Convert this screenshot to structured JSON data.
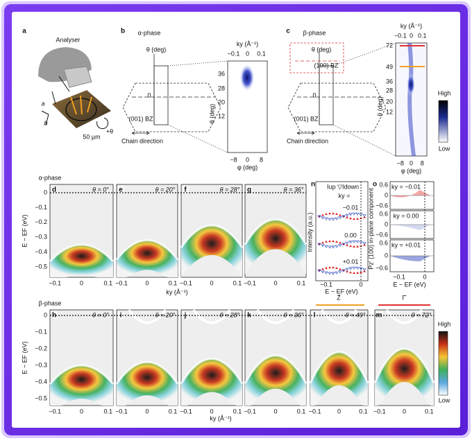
{
  "panel_a": {
    "label": "a",
    "analyser": "Analyser",
    "scale": "50 µm",
    "axis_a": "a",
    "axis_b": "b",
    "rotation": "+θ"
  },
  "panel_b": {
    "label": "b",
    "phase": "α-phase",
    "theta_axis": "θ (deg)",
    "zero": "0",
    "bz": "(001) BZ",
    "chain": "Chain direction",
    "map": {
      "top_axis": "ky (Å⁻¹)",
      "top_ticks": [
        "−0.1",
        "0",
        "0.1"
      ],
      "y_axis": "θ (deg)",
      "y_ticks": [
        "36",
        "28",
        "20",
        "12"
      ],
      "x_axis": "φ (deg)",
      "x_ticks": [
        "−8",
        "0",
        "8"
      ]
    }
  },
  "panel_c": {
    "label": "c",
    "phase": "β-phase",
    "theta_axis": "θ (deg)",
    "zero": "0",
    "bz": "(001) BZ",
    "bz_100": "(100) BZ",
    "chain": "Chain direction",
    "map": {
      "top_axis": "ky (Å⁻¹)",
      "top_ticks": [
        "−0.1",
        "0",
        "0.1"
      ],
      "y_axis": "θ (deg)",
      "y_ticks": [
        "72",
        "49",
        "36",
        "28",
        "20",
        "12"
      ],
      "x_axis": "φ (deg)",
      "x_ticks": [
        "−8",
        "0",
        "8"
      ]
    },
    "colorbar": {
      "high": "High",
      "low": "Low"
    }
  },
  "alpha_row": {
    "title": "α-phase",
    "y_axis": "E − EF (eV)",
    "y_ticks": [
      "0",
      "−0.1",
      "−0.2",
      "−0.3",
      "−0.4",
      "−0.5"
    ],
    "x_axis": "ky (Å⁻¹)",
    "x_ticks": [
      "−0.1",
      "0",
      "0.1"
    ],
    "panels": [
      {
        "label": "d",
        "theta": "θ = 0°"
      },
      {
        "label": "e",
        "theta": "θ = 20°"
      },
      {
        "label": "f",
        "theta": "θ = 28°"
      },
      {
        "label": "g",
        "theta": "θ = 36°"
      }
    ]
  },
  "panel_n": {
    "label": "n",
    "legend": "Iup ▽Idown",
    "ky": "ky =",
    "curves": [
      "−0.01",
      "0.00",
      "+0.01"
    ],
    "y_axis": "Intensity (a.u.)",
    "x_axis": "E − EF (eV)",
    "x_ticks": [
      "−0.1",
      "0"
    ]
  },
  "panel_o": {
    "label": "o",
    "y_axis": "Pz′ (100) in-plane component",
    "x_axis": "E − EF (eV)",
    "x_ticks": [
      "−0.1",
      "0"
    ],
    "subpanels": [
      {
        "ky": "ky = −0.01",
        "y_ticks": [
          "0.6",
          "0",
          "−0.6"
        ]
      },
      {
        "ky": "ky = 0.00",
        "y_ticks": [
          "0.6",
          "0",
          "−0.6"
        ]
      },
      {
        "ky": "ky = +0.01",
        "y_ticks": [
          "0.6",
          "0",
          "−0.6"
        ]
      }
    ]
  },
  "beta_row": {
    "title": "β-phase",
    "y_axis": "E − EF (eV)",
    "y_ticks": [
      "0",
      "−0.1",
      "−0.2",
      "−0.3",
      "−0.4",
      "−0.5"
    ],
    "x_axis": "ky (Å⁻¹)",
    "x_ticks": [
      "−0.1",
      "0",
      "0.1"
    ],
    "z_point": "Z̄",
    "gamma_point": "Γ̄",
    "panels": [
      {
        "label": "h",
        "theta": "θ = 0°"
      },
      {
        "label": "i",
        "theta": "θ = 20°"
      },
      {
        "label": "j",
        "theta": "θ = 28°"
      },
      {
        "label": "k",
        "theta": "θ = 36°"
      },
      {
        "label": "l",
        "theta": "θ = 49°"
      },
      {
        "label": "m",
        "theta": "θ = 72°"
      }
    ],
    "colorbar": {
      "high": "High",
      "low": "Low"
    }
  }
}
